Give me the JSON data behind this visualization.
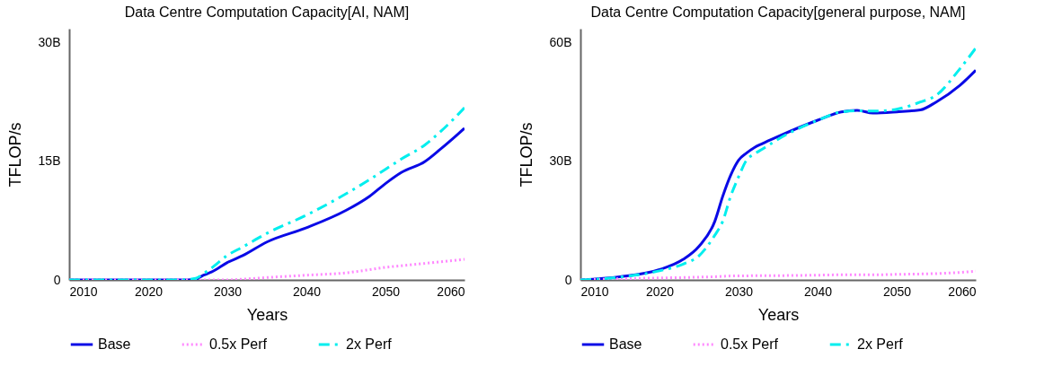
{
  "chart_data": [
    {
      "type": "line",
      "title": "Data Centre Computation Capacity[AI, NAM]",
      "xlabel": "Years",
      "ylabel": "TFLOP/s",
      "legend": "bottom",
      "x": [
        2010,
        2015,
        2020,
        2024,
        2026,
        2027,
        2028,
        2030,
        2032,
        2035,
        2040,
        2045,
        2048,
        2050,
        2052,
        2055,
        2057,
        2060
      ],
      "series": [
        {
          "name": "Base",
          "color": "#0a0ae6",
          "line_style": "solid",
          "values": [
            0,
            0,
            0,
            0,
            100000000.0,
            600000000.0,
            1000000000.0,
            2200000000.0,
            3100000000.0,
            4800000000.0,
            6600000000.0,
            8800000000.0,
            10600000000.0,
            12200000000.0,
            13600000000.0,
            15000000000.0,
            16600000000.0,
            19200000000.0
          ]
        },
        {
          "name": "0.5x Perf",
          "color": "#ff88ff",
          "line_style": "dotted",
          "values": [
            0,
            0,
            0,
            0,
            0,
            0,
            0,
            0,
            100000000.0,
            300000000.0,
            600000000.0,
            900000000.0,
            1300000000.0,
            1600000000.0,
            1800000000.0,
            2100000000.0,
            2300000000.0,
            2600000000.0
          ]
        },
        {
          "name": "2x Perf",
          "color": "#00eeee",
          "line_style": "dashed",
          "values": [
            0,
            0,
            0,
            0,
            200000000.0,
            800000000.0,
            1500000000.0,
            3100000000.0,
            4200000000.0,
            5900000000.0,
            8200000000.0,
            10900000000.0,
            12700000000.0,
            14000000000.0,
            15300000000.0,
            17100000000.0,
            18800000000.0,
            21800000000.0
          ]
        }
      ],
      "xlim": [
        2010,
        2060
      ],
      "xticks": [
        2010,
        2020,
        2030,
        2040,
        2050,
        2060
      ],
      "ylim": [
        0,
        31800000000
      ],
      "yticks": [
        0,
        {
          "value": 15000000000,
          "label": "15B"
        },
        {
          "value": 30000000000,
          "label": "30B"
        }
      ]
    },
    {
      "type": "line",
      "title": "Data Centre Computation Capacity[general purpose, NAM]",
      "xlabel": "Years",
      "ylabel": "TFLOP/s",
      "legend": "bottom",
      "x": [
        2010,
        2015,
        2020,
        2023,
        2025,
        2027,
        2028,
        2029,
        2030,
        2031,
        2032,
        2033,
        2035,
        2040,
        2043,
        2045,
        2047,
        2050,
        2053,
        2055,
        2058,
        2060
      ],
      "series": [
        {
          "name": "Base",
          "color": "#0a0ae6",
          "line_style": "solid",
          "values": [
            0,
            800000000.0,
            2600000000.0,
            5200000000.0,
            8500000000.0,
            14800000000.0,
            21100000000.0,
            26400000000.0,
            30200000000.0,
            32000000000.0,
            33400000000.0,
            34400000000.0,
            36200000000.0,
            40300000000.0,
            42400000000.0,
            42800000000.0,
            42100000000.0,
            42400000000.0,
            42900000000.0,
            44900000000.0,
            49100000000.0,
            52900000000.0
          ]
        },
        {
          "name": "0.5x Perf",
          "color": "#ff88ff",
          "line_style": "dotted",
          "values": [
            0,
            300000000.0,
            500000000.0,
            600000000.0,
            700000000.0,
            800000000.0,
            900000000.0,
            1000000000.0,
            1000000000.0,
            1000000000.0,
            1100000000.0,
            1100000000.0,
            1100000000.0,
            1200000000.0,
            1300000000.0,
            1300000000.0,
            1300000000.0,
            1400000000.0,
            1500000000.0,
            1600000000.0,
            1900000000.0,
            2200000000.0
          ]
        },
        {
          "name": "2x Perf",
          "color": "#00eeee",
          "line_style": "dashed",
          "values": [
            0,
            700000000.0,
            2300000000.0,
            4000000000.0,
            6100000000.0,
            11300000000.0,
            14800000000.0,
            21100000000.0,
            26000000000.0,
            30200000000.0,
            31800000000.0,
            33000000000.0,
            35500000000.0,
            40300000000.0,
            42400000000.0,
            42700000000.0,
            42600000000.0,
            43100000000.0,
            44900000000.0,
            46600000000.0,
            53300000000.0,
            58500000000.0
          ]
        }
      ],
      "xlim": [
        2010,
        2060
      ],
      "xticks": [
        2010,
        2020,
        2030,
        2040,
        2050,
        2060
      ],
      "ylim": [
        0,
        63400000000
      ],
      "yticks": [
        0,
        {
          "value": 30000000000,
          "label": "30B"
        },
        {
          "value": 60000000000,
          "label": "60B"
        }
      ]
    }
  ]
}
